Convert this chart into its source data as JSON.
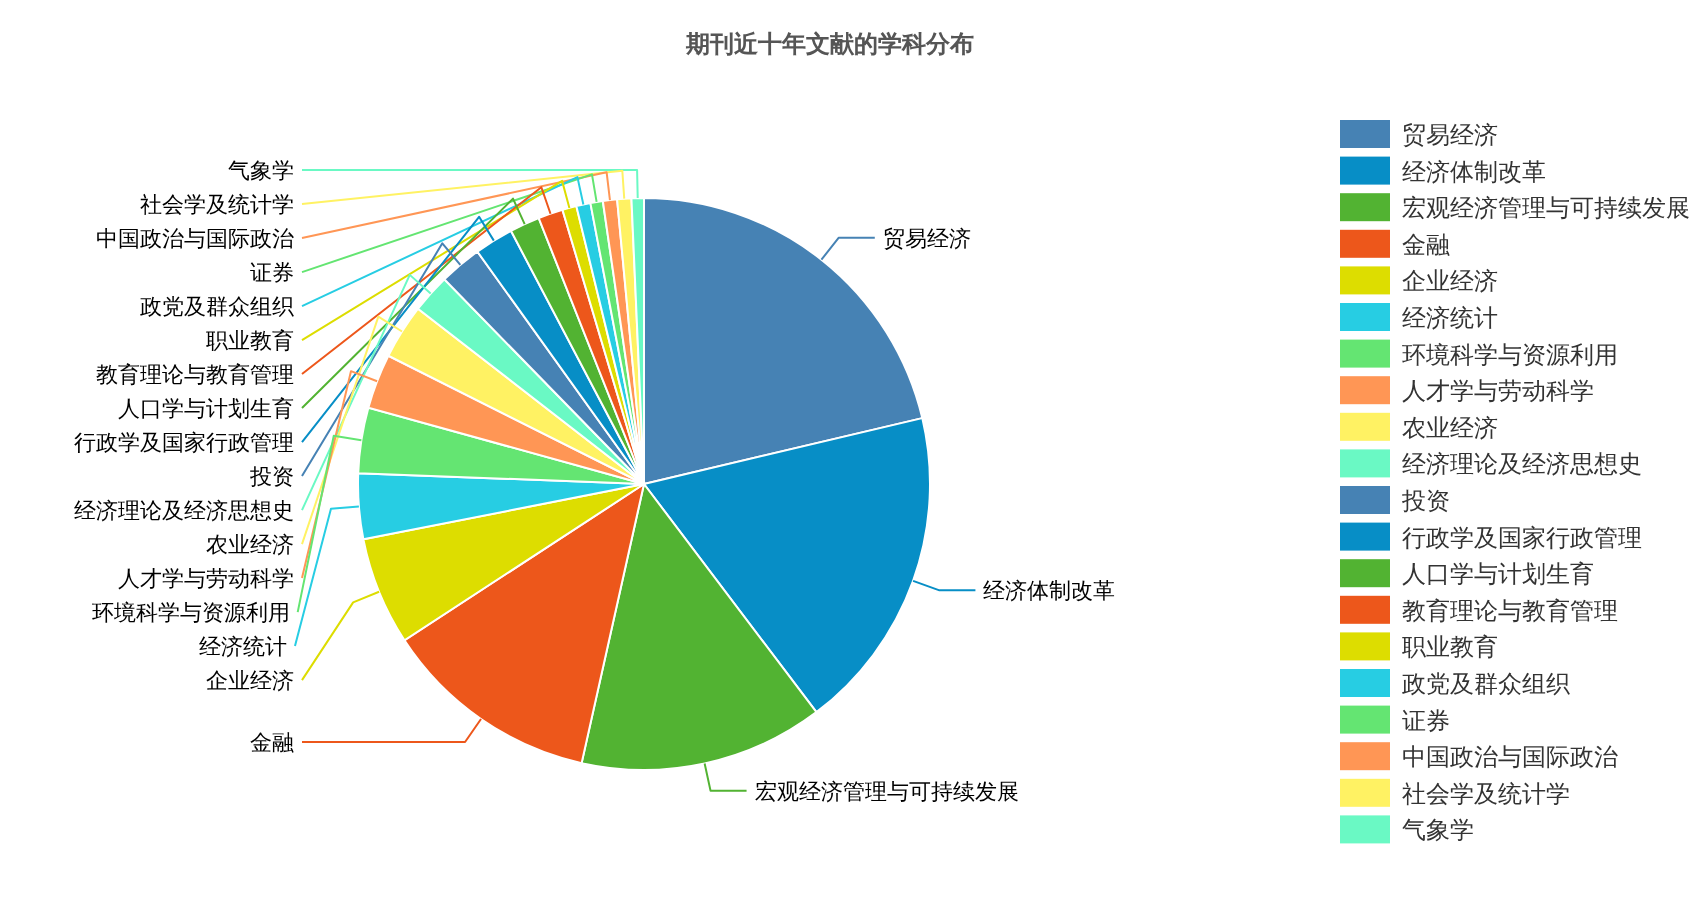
{
  "chart_data": {
    "type": "pie",
    "title": "期刊近十年文献的学科分布",
    "categories": [
      "贸易经济",
      "经济体制改革",
      "宏观经济管理与可持续发展",
      "金融",
      "企业经济",
      "经济统计",
      "环境科学与资源利用",
      "人才学与劳动科学",
      "农业经济",
      "经济理论及经济思想史",
      "投资",
      "行政学及国家行政管理",
      "人口学与计划生育",
      "教育理论与教育管理",
      "职业教育",
      "政党及群众组织",
      "证券",
      "中国政治与国际政治",
      "社会学及统计学",
      "气象学"
    ],
    "values": [
      21.3,
      18.4,
      13.8,
      12.3,
      6.1,
      3.7,
      3.7,
      3.1,
      3.1,
      2.2,
      2.4,
      2.2,
      1.7,
      1.4,
      0.8,
      0.8,
      0.7,
      0.8,
      0.8,
      0.7
    ],
    "colors": [
      "#4682b4",
      "#078ec6",
      "#52b332",
      "#ed571b",
      "#dddd00",
      "#27cde3",
      "#64e572",
      "#ff9655",
      "#fff263",
      "#6af9c4",
      "#4682b4",
      "#078ec6",
      "#52b332",
      "#ed571b",
      "#dddd00",
      "#27cde3",
      "#64e572",
      "#ff9655",
      "#fff263",
      "#6af9c4"
    ],
    "legend": "right"
  }
}
